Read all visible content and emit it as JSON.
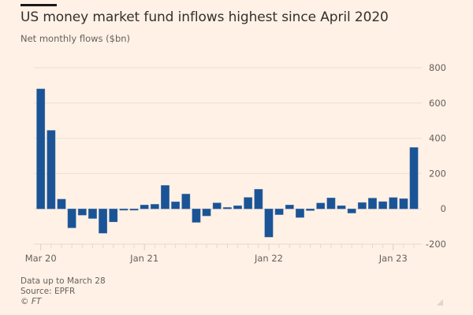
{
  "header": {
    "title": "US money market fund inflows highest since April 2020",
    "subtitle": "Net monthly flows ($bn)"
  },
  "footer": {
    "note": "Data up to March 28",
    "source": "Source: EPFR",
    "copyright": "© FT"
  },
  "colors": {
    "background": "#fff1e5",
    "bar": "#1a5496",
    "gridline": "#ebe0d5",
    "axis": "#e6d9cc",
    "text": "#66605c"
  },
  "chart_data": {
    "type": "bar",
    "title": "US money market fund inflows highest since April 2020",
    "subtitle": "Net monthly flows ($bn)",
    "xlabel": "",
    "ylabel": "Net monthly flows ($bn)",
    "ylim": [
      -200,
      800
    ],
    "yticks": [
      800,
      600,
      400,
      200,
      0,
      -200
    ],
    "ytick_labels": [
      "800",
      "600",
      "400",
      "200",
      "0",
      "-200"
    ],
    "y_axis_position": "right",
    "grid": true,
    "categories": [
      "Mar 20",
      "Apr 20",
      "May 20",
      "Jun 20",
      "Jul 20",
      "Aug 20",
      "Sep 20",
      "Oct 20",
      "Nov 20",
      "Dec 20",
      "Jan 21",
      "Feb 21",
      "Mar 21",
      "Apr 21",
      "May 21",
      "Jun 21",
      "Jul 21",
      "Aug 21",
      "Sep 21",
      "Oct 21",
      "Nov 21",
      "Dec 21",
      "Jan 22",
      "Feb 22",
      "Mar 22",
      "Apr 22",
      "May 22",
      "Jun 22",
      "Jul 22",
      "Aug 22",
      "Sep 22",
      "Oct 22",
      "Nov 22",
      "Dec 22",
      "Jan 23",
      "Feb 23",
      "Mar 23"
    ],
    "values": [
      680,
      445,
      55,
      -108,
      -36,
      -55,
      -138,
      -74,
      -8,
      -8,
      22,
      26,
      133,
      40,
      84,
      -77,
      -40,
      34,
      8,
      18,
      65,
      111,
      -160,
      -33,
      22,
      -49,
      -10,
      33,
      62,
      18,
      -24,
      36,
      61,
      41,
      64,
      58,
      348
    ],
    "xtick_labels": [
      {
        "index": 0,
        "label": "Mar 20"
      },
      {
        "index": 10,
        "label": "Jan 21"
      },
      {
        "index": 22,
        "label": "Jan 22"
      },
      {
        "index": 34,
        "label": "Jan 23"
      }
    ]
  }
}
